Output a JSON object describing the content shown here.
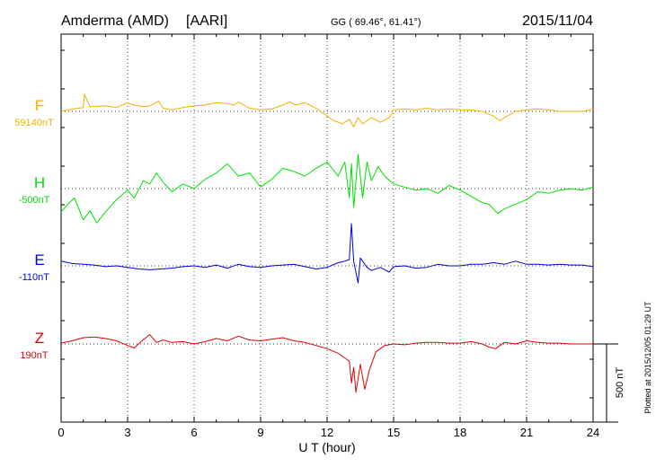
{
  "header": {
    "station": "Amderma (AMD)",
    "institute": "[AARI]",
    "coords": "GG ( 69.46°,  61.41°)",
    "date": "2015/11/04"
  },
  "footer": {
    "plotted": "Plotted at 2015/12/05 01:29 UT"
  },
  "chart_data": {
    "type": "line",
    "title": "Amderma (AMD)  [AARI]",
    "xlabel": "U T (hour)",
    "xlim": [
      0,
      24
    ],
    "xticks": [
      "0",
      "3",
      "6",
      "9",
      "12",
      "15",
      "18",
      "21",
      "24"
    ],
    "scale_bar": {
      "label": "500 nT",
      "value": 500
    },
    "grid": true,
    "series": [
      {
        "name": "F",
        "baseline_label": "59140nT",
        "baseline": 59140,
        "color": "#f5b000",
        "x": [
          0,
          0.5,
          1,
          1.05,
          1.3,
          2,
          2.5,
          3,
          3.3,
          3.7,
          4,
          4.4,
          4.6,
          5,
          5.5,
          6,
          6.5,
          7,
          7.5,
          7.8,
          8,
          8.5,
          9,
          9.5,
          10,
          10.3,
          10.6,
          11,
          11.5,
          12,
          12.3,
          12.7,
          13,
          13.2,
          13.4,
          13.6,
          13.8,
          14,
          14.4,
          14.8,
          15,
          15.5,
          16,
          16.5,
          17,
          17.5,
          18,
          18.5,
          19,
          19.5,
          19.8,
          20,
          20.5,
          21,
          21.5,
          22,
          22.5,
          23,
          23.5,
          24
        ],
        "values": [
          59140,
          59155,
          59165,
          59250,
          59170,
          59175,
          59165,
          59195,
          59180,
          59170,
          59175,
          59205,
          59160,
          59150,
          59165,
          59175,
          59180,
          59195,
          59190,
          59180,
          59200,
          59160,
          59150,
          59155,
          59180,
          59200,
          59180,
          59195,
          59160,
          59110,
          59080,
          59060,
          59090,
          59040,
          59100,
          59060,
          59080,
          59100,
          59070,
          59100,
          59150,
          59155,
          59150,
          59160,
          59150,
          59155,
          59150,
          59150,
          59140,
          59110,
          59080,
          59100,
          59140,
          59150,
          59155,
          59150,
          59140,
          59140,
          59140,
          59155
        ]
      },
      {
        "name": "H",
        "baseline_label": "-500nT",
        "baseline": -500,
        "color": "#00e000",
        "x": [
          0,
          0.3,
          0.6,
          1,
          1.3,
          1.6,
          2,
          2.5,
          3,
          3.3,
          3.7,
          4,
          4.3,
          4.6,
          5,
          5.5,
          6,
          6.5,
          7,
          7.5,
          8,
          8.5,
          9,
          9.5,
          10,
          10.5,
          11,
          11.5,
          12,
          12.5,
          12.8,
          13,
          13.1,
          13.2,
          13.4,
          13.6,
          13.8,
          14,
          14.3,
          14.6,
          15,
          15.5,
          16,
          16.5,
          17,
          17.5,
          18,
          18.5,
          19,
          19.3,
          19.7,
          20,
          20.5,
          21,
          21.5,
          22,
          22.5,
          23,
          23.5,
          24
        ],
        "values": [
          -650,
          -600,
          -560,
          -700,
          -640,
          -720,
          -650,
          -570,
          -510,
          -560,
          -450,
          -470,
          -400,
          -460,
          -520,
          -470,
          -500,
          -440,
          -400,
          -340,
          -420,
          -400,
          -490,
          -440,
          -370,
          -390,
          -420,
          -370,
          -330,
          -420,
          -330,
          -560,
          -340,
          -620,
          -280,
          -560,
          -330,
          -450,
          -360,
          -420,
          -470,
          -490,
          -510,
          -500,
          -530,
          -480,
          -510,
          -550,
          -590,
          -600,
          -660,
          -630,
          -600,
          -570,
          -520,
          -530,
          -510,
          -500,
          -510,
          -490
        ]
      },
      {
        "name": "E",
        "baseline_label": "-110nT",
        "baseline": -110,
        "color": "#0000dd",
        "x": [
          0,
          0.5,
          1,
          1.5,
          2,
          2.5,
          3,
          3.5,
          4,
          4.5,
          5,
          5.5,
          6,
          6.5,
          7,
          7.5,
          8,
          8.5,
          9,
          9.5,
          10,
          10.5,
          11,
          11.5,
          12,
          12.5,
          12.8,
          13,
          13.1,
          13.2,
          13.4,
          13.5,
          13.8,
          14,
          14.4,
          14.8,
          15,
          15.5,
          16,
          16.5,
          17,
          17.5,
          18,
          18.5,
          19,
          19.5,
          20,
          20.5,
          21,
          21.5,
          22,
          22.5,
          23,
          23.5,
          24
        ],
        "values": [
          -80,
          -95,
          -100,
          -105,
          -115,
          -110,
          -120,
          -130,
          -135,
          -130,
          -125,
          -115,
          -110,
          -120,
          -105,
          -125,
          -100,
          -115,
          -120,
          -110,
          -105,
          -100,
          -115,
          -130,
          -120,
          -90,
          -80,
          -70,
          160,
          -80,
          -220,
          -60,
          -120,
          -140,
          -120,
          -150,
          -115,
          -110,
          -125,
          -120,
          -100,
          -110,
          -110,
          -100,
          -100,
          -90,
          -100,
          -80,
          -100,
          -100,
          -105,
          -100,
          -105,
          -105,
          -115
        ]
      },
      {
        "name": "Z",
        "baseline_label": "190nT",
        "baseline": 190,
        "color": "#e00000",
        "x": [
          0,
          0.5,
          1,
          1.5,
          2,
          2.5,
          3,
          3.3,
          3.6,
          4,
          4.3,
          4.6,
          5,
          5.5,
          6,
          6.5,
          7,
          7.5,
          8,
          8.5,
          9,
          9.5,
          10,
          10.5,
          11,
          11.5,
          12,
          12.5,
          13,
          13.1,
          13.2,
          13.3,
          13.5,
          13.7,
          13.9,
          14.2,
          14.6,
          15,
          15.5,
          16,
          16.5,
          17,
          17.5,
          18,
          18.5,
          19,
          19.3,
          19.6,
          20,
          20.5,
          21,
          21.5,
          22,
          22.5,
          23,
          23.5,
          24
        ],
        "values": [
          195,
          210,
          230,
          235,
          225,
          210,
          180,
          165,
          205,
          250,
          200,
          215,
          200,
          205,
          190,
          205,
          225,
          210,
          240,
          215,
          210,
          220,
          230,
          210,
          200,
          180,
          160,
          130,
          80,
          -60,
          40,
          -120,
          60,
          -100,
          20,
          140,
          180,
          190,
          185,
          195,
          200,
          200,
          195,
          195,
          205,
          190,
          170,
          160,
          200,
          190,
          210,
          200,
          195,
          195,
          190,
          190,
          190
        ]
      }
    ]
  }
}
